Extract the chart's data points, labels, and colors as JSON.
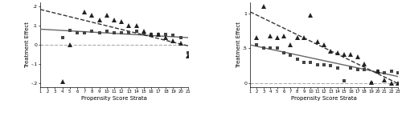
{
  "left": {
    "xlim": [
      1,
      21
    ],
    "ylim": [
      -0.22,
      0.22
    ],
    "yticks": [
      -0.2,
      -0.1,
      0.0,
      0.1,
      0.2
    ],
    "ytick_labels": [
      "-.2",
      "-.1",
      "0",
      ".1",
      ".2"
    ],
    "xticks": [
      1,
      2,
      3,
      4,
      5,
      6,
      7,
      8,
      9,
      10,
      11,
      12,
      13,
      14,
      15,
      16,
      17,
      18,
      19,
      20,
      21
    ],
    "xlabel": "Propensity Score Strata",
    "ylabel": "Treatment Effect",
    "hukou0_x": [
      4,
      5,
      6,
      7,
      8,
      9,
      10,
      11,
      12,
      13,
      14,
      15,
      16,
      17,
      18,
      19,
      20,
      21
    ],
    "hukou0_y": [
      0.04,
      0.075,
      0.065,
      0.065,
      0.07,
      0.065,
      0.07,
      0.065,
      0.065,
      0.065,
      0.07,
      0.06,
      0.055,
      0.055,
      0.055,
      0.05,
      0.04,
      -0.04
    ],
    "hukou1_x": [
      4,
      5,
      7,
      8,
      9,
      10,
      11,
      12,
      13,
      14,
      15,
      16,
      17,
      18,
      19,
      20,
      21
    ],
    "hukou1_y": [
      -0.19,
      0.0,
      0.17,
      0.155,
      0.13,
      0.155,
      0.13,
      0.12,
      0.1,
      0.1,
      0.07,
      0.055,
      0.055,
      0.04,
      0.02,
      0.01,
      -0.06
    ],
    "trend0_x": [
      1,
      21
    ],
    "trend0_y": [
      0.082,
      0.038
    ],
    "trend1_x": [
      1,
      21
    ],
    "trend1_y": [
      0.185,
      -0.005
    ],
    "zero_dashed": true
  },
  "right": {
    "xlim": [
      1,
      23
    ],
    "ylim": [
      -0.05,
      1.15
    ],
    "yticks": [
      0.0,
      0.5,
      1.0
    ],
    "ytick_labels": [
      "0",
      ".5",
      "1"
    ],
    "xticks": [
      1,
      2,
      3,
      4,
      5,
      6,
      7,
      8,
      9,
      10,
      11,
      12,
      13,
      14,
      15,
      16,
      17,
      18,
      19,
      20,
      21,
      22,
      23
    ],
    "xlabel": "Propensity Score Strata",
    "ylabel": "Treatment Effect",
    "hukou0_x": [
      2,
      3,
      4,
      5,
      6,
      7,
      8,
      9,
      10,
      11,
      12,
      13,
      14,
      15,
      16,
      17,
      18,
      19,
      20,
      21,
      22,
      23
    ],
    "hukou0_y": [
      0.55,
      0.5,
      0.5,
      0.5,
      0.44,
      0.4,
      0.35,
      0.3,
      0.3,
      0.27,
      0.27,
      0.25,
      0.22,
      0.04,
      0.22,
      0.2,
      0.2,
      0.0,
      0.18,
      0.15,
      0.18,
      0.15
    ],
    "hukou1_x": [
      2,
      3,
      4,
      5,
      6,
      7,
      8,
      9,
      10,
      11,
      12,
      13,
      14,
      15,
      16,
      17,
      18,
      19,
      20,
      21,
      22,
      23
    ],
    "hukou1_y": [
      0.65,
      1.1,
      0.68,
      0.65,
      0.68,
      0.55,
      0.65,
      0.65,
      0.97,
      0.6,
      0.55,
      0.46,
      0.44,
      0.42,
      0.42,
      0.38,
      0.28,
      0.02,
      0.18,
      0.05,
      0.01,
      0.0
    ],
    "trend0_x": [
      1,
      23
    ],
    "trend0_y": [
      0.55,
      0.1
    ],
    "trend1_x": [
      1,
      23
    ],
    "trend1_y": [
      1.02,
      0.0
    ],
    "zero_dashed": false
  },
  "marker0": "s",
  "marker1": "^",
  "color0": "#444444",
  "color1": "#222222",
  "markersize": 3.2,
  "linewidth_trend": 1.0,
  "zero_line_color": "#aaaaaa",
  "zero_line_lw": 0.8,
  "bg_color": "#f0f0f0"
}
